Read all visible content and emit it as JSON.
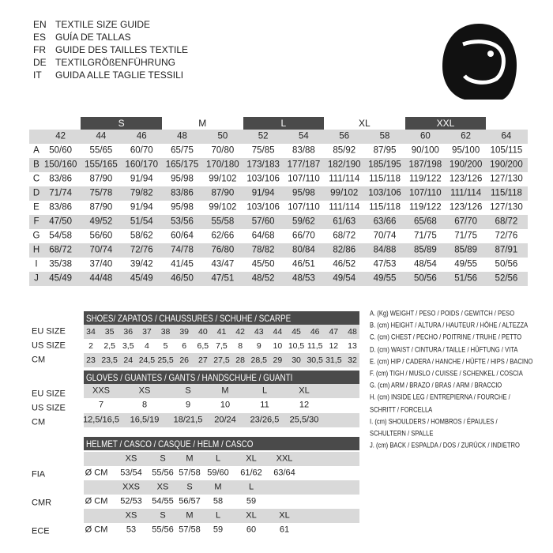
{
  "header": {
    "lines": [
      {
        "code": "EN",
        "text": "TEXTILE SIZE GUIDE"
      },
      {
        "code": "ES",
        "text": "GUÍA DE TALLAS"
      },
      {
        "code": "FR",
        "text": "GUIDE DES TAILLES TEXTILE"
      },
      {
        "code": "DE",
        "text": "TEXTILGRÖßENFÜHRUNG"
      },
      {
        "code": "IT",
        "text": "GUIDA ALLE TAGLIE TESSILI"
      }
    ]
  },
  "textile": {
    "size_labels": [
      "S",
      "M",
      "L",
      "XL",
      "XXL"
    ],
    "sizes": [
      42,
      44,
      46,
      48,
      50,
      52,
      54,
      56,
      58,
      60,
      62,
      64
    ],
    "rows": [
      {
        "key": "A",
        "values": [
          "50/60",
          "55/65",
          "60/70",
          "65/75",
          "70/80",
          "75/85",
          "83/88",
          "85/92",
          "87/95",
          "90/100",
          "95/100",
          "105/115"
        ]
      },
      {
        "key": "B",
        "values": [
          "150/160",
          "155/165",
          "160/170",
          "165/175",
          "170/180",
          "173/183",
          "177/187",
          "182/190",
          "185/195",
          "187/198",
          "190/200",
          "190/200"
        ]
      },
      {
        "key": "C",
        "values": [
          "83/86",
          "87/90",
          "91/94",
          "95/98",
          "99/102",
          "103/106",
          "107/110",
          "111/114",
          "115/118",
          "119/122",
          "123/126",
          "127/130"
        ]
      },
      {
        "key": "D",
        "values": [
          "71/74",
          "75/78",
          "79/82",
          "83/86",
          "87/90",
          "91/94",
          "95/98",
          "99/102",
          "103/106",
          "107/110",
          "111/114",
          "115/118"
        ]
      },
      {
        "key": "E",
        "values": [
          "83/86",
          "87/90",
          "91/94",
          "95/98",
          "99/102",
          "103/106",
          "107/110",
          "111/114",
          "115/118",
          "119/122",
          "123/126",
          "127/130"
        ]
      },
      {
        "key": "F",
        "values": [
          "47/50",
          "49/52",
          "51/54",
          "53/56",
          "55/58",
          "57/60",
          "59/62",
          "61/63",
          "63/66",
          "65/68",
          "67/70",
          "68/72"
        ]
      },
      {
        "key": "G",
        "values": [
          "54/58",
          "56/60",
          "58/62",
          "60/64",
          "62/66",
          "64/68",
          "66/70",
          "68/72",
          "70/74",
          "71/75",
          "71/75",
          "72/76"
        ]
      },
      {
        "key": "H",
        "values": [
          "68/72",
          "70/74",
          "72/76",
          "74/78",
          "76/80",
          "78/82",
          "80/84",
          "82/86",
          "84/88",
          "85/89",
          "85/89",
          "87/91"
        ]
      },
      {
        "key": "I",
        "values": [
          "35/38",
          "37/40",
          "39/42",
          "41/45",
          "43/47",
          "45/50",
          "46/51",
          "46/52",
          "47/53",
          "48/54",
          "49/55",
          "50/56"
        ]
      },
      {
        "key": "J",
        "values": [
          "45/49",
          "44/48",
          "45/49",
          "46/50",
          "47/51",
          "48/52",
          "48/53",
          "49/54",
          "49/55",
          "50/56",
          "51/56",
          "52/56"
        ]
      }
    ]
  },
  "shoes": {
    "title": "SHOES/ ZAPATOS / CHAUSSURES / SCHUHE / SCARPE",
    "row_labels": [
      "EU SIZE",
      "US SIZE",
      "CM"
    ],
    "rows": [
      [
        34,
        35,
        36,
        37,
        38,
        39,
        40,
        41,
        42,
        43,
        44,
        45,
        46,
        47,
        48
      ],
      [
        "2",
        "2,5",
        "3,5",
        "4",
        "5",
        "6",
        "6,5",
        "7,5",
        "8",
        "9",
        "10",
        "10,5",
        "11,5",
        "12",
        "13"
      ],
      [
        "23",
        "23,5",
        "24",
        "24,5",
        "25,5",
        "26",
        "27",
        "27,5",
        "28",
        "28,5",
        "29",
        "30",
        "30,5",
        "31,5",
        "32"
      ]
    ]
  },
  "gloves": {
    "title": "GLOVES / GUANTES / GANTS / HANDSCHUHE / GUANTI",
    "row_labels": [
      "EU SIZE",
      "US SIZE",
      "CM"
    ],
    "rows": [
      [
        "XXS",
        "XS",
        "S",
        "M",
        "L",
        "XL"
      ],
      [
        7,
        8,
        9,
        10,
        11,
        12
      ],
      [
        "12,5/16,5",
        "16,5/19",
        "18/21,5",
        "20/24",
        "23/26,5",
        "25,5/30"
      ]
    ]
  },
  "helmet": {
    "title": "HELMET / CASCO / CASQUE / HELM / CASCO",
    "groups": [
      {
        "label": "FIA",
        "unit": "Ø CM",
        "sizes": [
          "XS",
          "S",
          "M",
          "L",
          "XL",
          "XXL"
        ],
        "cm": [
          "53/54",
          "55/56",
          "57/58",
          "59/60",
          "61/62",
          "63/64"
        ]
      },
      {
        "label": "CMR",
        "unit": "Ø CM",
        "sizes": [
          "XXS",
          "XS",
          "S",
          "M",
          "L"
        ],
        "cm": [
          "52/53",
          "54/55",
          "56/57",
          "58",
          "59"
        ]
      },
      {
        "label": "ECE",
        "unit": "Ø CM",
        "sizes": [
          "XS",
          "S",
          "M",
          "L",
          "XL",
          "XL"
        ],
        "cm": [
          "53",
          "55/56",
          "57/58",
          "59",
          "60",
          "61"
        ]
      }
    ]
  },
  "legend": {
    "lines": [
      "A. (Kg) WEIGHT / PESO / POIDS / GEWITCH / PESO",
      "B. (cm) HEIGHT / ALTURA / HAUTEUR / HÖHE / ALTEZZA",
      "C. (cm) CHEST / PECHO / POITRINE / TRUHE / PETTO",
      "D. (cm) WAIST / CINTURA / TAILLE / HÜFTUNG / VITA",
      "E. (cm) HIP / CADERA / HANCHE / HÜFTE / HIPS / BACINO",
      "F. (cm) TIGH / MUSLO / CUISSE / SCHENKEL / COSCIA",
      "G. (cm) ARM / BRAZO / BRAS / ARM / BRACCIO",
      "H. (cm) INSIDE LEG / ENTREPIERNA / FOURCHE /",
      "SCHRITT / FORCELLA",
      "I. (cm) SHOULDERS / HOMBROS / ÉPAULES /",
      "SCHULTERN / SPALLE",
      "J. (cm) BACK / ESPALDA / DOS / ZURÜCK / INDIETRO"
    ]
  }
}
